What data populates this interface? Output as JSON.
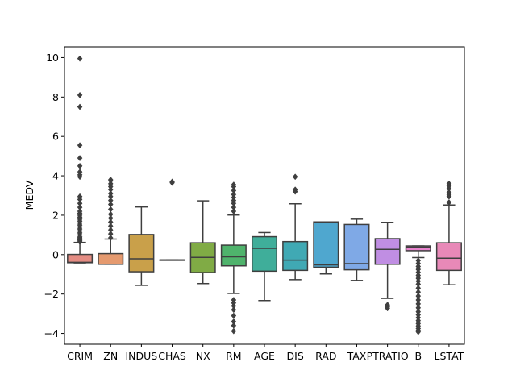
{
  "chart_data": {
    "type": "box",
    "title": "",
    "xlabel": "",
    "ylabel": "MEDV",
    "ylim": [
      -4.55,
      10.55
    ],
    "yticks": [
      -4,
      -2,
      0,
      2,
      4,
      6,
      8,
      10
    ],
    "grid": false,
    "legend": "none",
    "categories": [
      "CRIM",
      "ZN",
      "INDUS",
      "CHAS",
      "NX",
      "RM",
      "AGE",
      "DIS",
      "RAD",
      "TAX",
      "PTRATIO",
      "B",
      "LSTAT"
    ],
    "colors": [
      "#e48c83",
      "#e59a6f",
      "#c9a04a",
      "#a9a43f",
      "#80ab45",
      "#4fb36c",
      "#3fae9a",
      "#40a9b4",
      "#4fa7cf",
      "#7fa9e6",
      "#c08ee3",
      "#e883cd",
      "#e889b8"
    ],
    "boxes": [
      {
        "q1": -0.41,
        "median": -0.39,
        "q3": 0.01,
        "whisker_low": -0.42,
        "whisker_high": 0.62,
        "outliers": [
          0.65,
          0.7,
          0.75,
          0.8,
          0.85,
          0.9,
          1.0,
          1.1,
          1.2,
          1.3,
          1.4,
          1.5,
          1.6,
          1.7,
          1.8,
          1.9,
          2.0,
          2.1,
          2.2,
          2.4,
          2.6,
          2.8,
          2.95,
          3.95,
          4.05,
          4.2,
          4.5,
          4.9,
          5.55,
          7.5,
          8.1,
          9.95
        ]
      },
      {
        "q1": -0.49,
        "median": -0.49,
        "q3": 0.05,
        "whisker_low": -0.49,
        "whisker_high": 0.79,
        "outliers": [
          0.85,
          1.05,
          1.25,
          1.45,
          1.65,
          1.85,
          2.05,
          2.3,
          2.55,
          2.75,
          2.95,
          3.1,
          3.3,
          3.45,
          3.6,
          3.75,
          3.8
        ]
      },
      {
        "q1": -0.87,
        "median": -0.21,
        "q3": 1.02,
        "whisker_low": -1.56,
        "whisker_high": 2.42,
        "outliers": []
      },
      {
        "q1": -0.27,
        "median": -0.27,
        "q3": -0.27,
        "whisker_low": -0.27,
        "whisker_high": -0.27,
        "outliers": [
          3.65,
          3.7
        ]
      },
      {
        "q1": -0.91,
        "median": -0.14,
        "q3": 0.6,
        "whisker_low": -1.47,
        "whisker_high": 2.73,
        "outliers": []
      },
      {
        "q1": -0.57,
        "median": -0.11,
        "q3": 0.48,
        "whisker_low": -1.97,
        "whisker_high": 2.01,
        "outliers": [
          -2.3,
          -2.45,
          -2.6,
          -2.8,
          -3.1,
          -3.4,
          -3.6,
          -3.88,
          2.2,
          2.4,
          2.6,
          2.75,
          2.9,
          3.05,
          3.25,
          3.45,
          3.55
        ]
      },
      {
        "q1": -0.84,
        "median": 0.32,
        "q3": 0.91,
        "whisker_low": -2.33,
        "whisker_high": 1.12,
        "outliers": []
      },
      {
        "q1": -0.8,
        "median": -0.28,
        "q3": 0.66,
        "whisker_low": -1.27,
        "whisker_high": 2.58,
        "outliers": [
          3.2,
          3.3,
          3.95
        ]
      },
      {
        "q1": -0.64,
        "median": -0.52,
        "q3": 1.66,
        "whisker_low": -0.98,
        "whisker_high": 1.66,
        "outliers": []
      },
      {
        "q1": -0.77,
        "median": -0.46,
        "q3": 1.53,
        "whisker_low": -1.31,
        "whisker_high": 1.8,
        "outliers": []
      },
      {
        "q1": -0.49,
        "median": 0.27,
        "q3": 0.81,
        "whisker_low": -2.22,
        "whisker_high": 1.64,
        "outliers": [
          -2.55,
          -2.65,
          -2.72
        ]
      },
      {
        "q1": 0.2,
        "median": 0.38,
        "q3": 0.44,
        "whisker_low": -0.15,
        "whisker_high": 0.44,
        "outliers": [
          -0.3,
          -0.45,
          -0.6,
          -0.75,
          -0.9,
          -1.05,
          -1.2,
          -1.35,
          -1.5,
          -1.7,
          -1.9,
          -2.1,
          -2.3,
          -2.5,
          -2.7,
          -2.9,
          -3.05,
          -3.2,
          -3.35,
          -3.5,
          -3.62,
          -3.75,
          -3.85,
          -3.92
        ]
      },
      {
        "q1": -0.8,
        "median": -0.18,
        "q3": 0.6,
        "whisker_low": -1.53,
        "whisker_high": 2.52,
        "outliers": [
          2.65,
          2.95,
          3.05,
          3.15,
          3.35,
          3.5,
          3.6
        ]
      }
    ]
  }
}
